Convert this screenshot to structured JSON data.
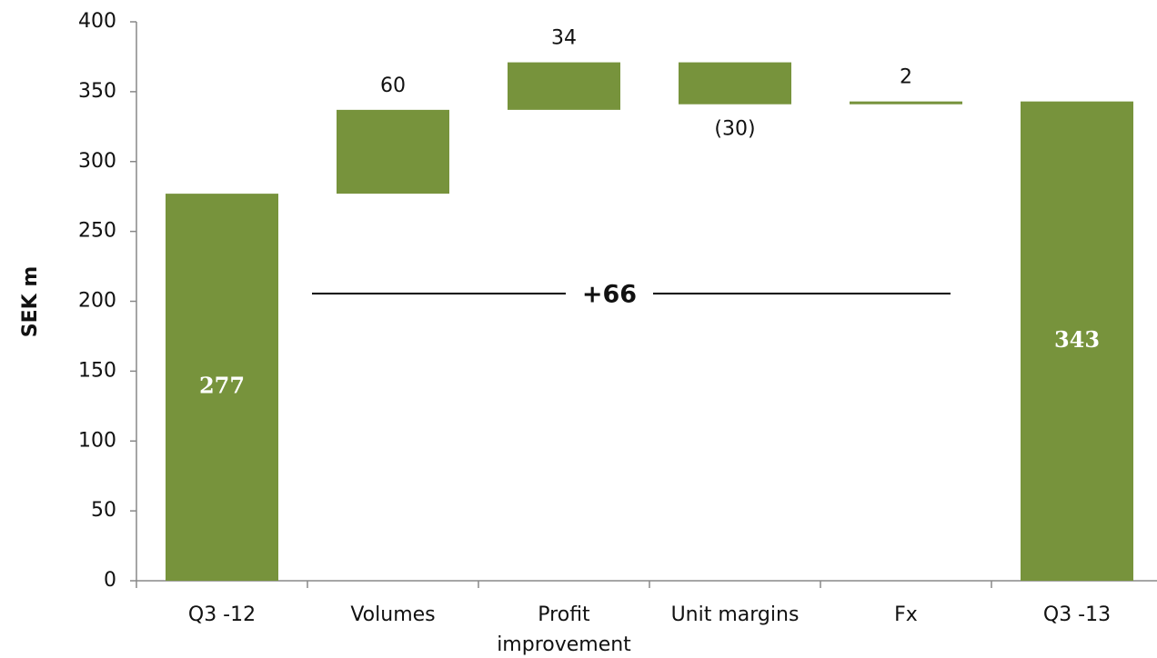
{
  "chart_data": {
    "type": "waterfall",
    "categories": [
      "Q3 -12",
      "Volumes",
      "Profit improvement",
      "Unit margins",
      "Fx",
      "Q3 -13"
    ],
    "values": [
      277,
      60,
      34,
      -30,
      2,
      343
    ],
    "value_labels": [
      "277",
      "60",
      "34",
      "(30)",
      "2",
      "343"
    ],
    "measures": [
      "absolute",
      "relative",
      "relative",
      "relative",
      "relative",
      "total"
    ],
    "color": "#77933c",
    "y_label": "SEK m",
    "annotation": "+66",
    "ylim": [
      0,
      400
    ],
    "yticks": [
      0,
      50,
      100,
      150,
      200,
      250,
      300,
      350,
      400
    ]
  }
}
